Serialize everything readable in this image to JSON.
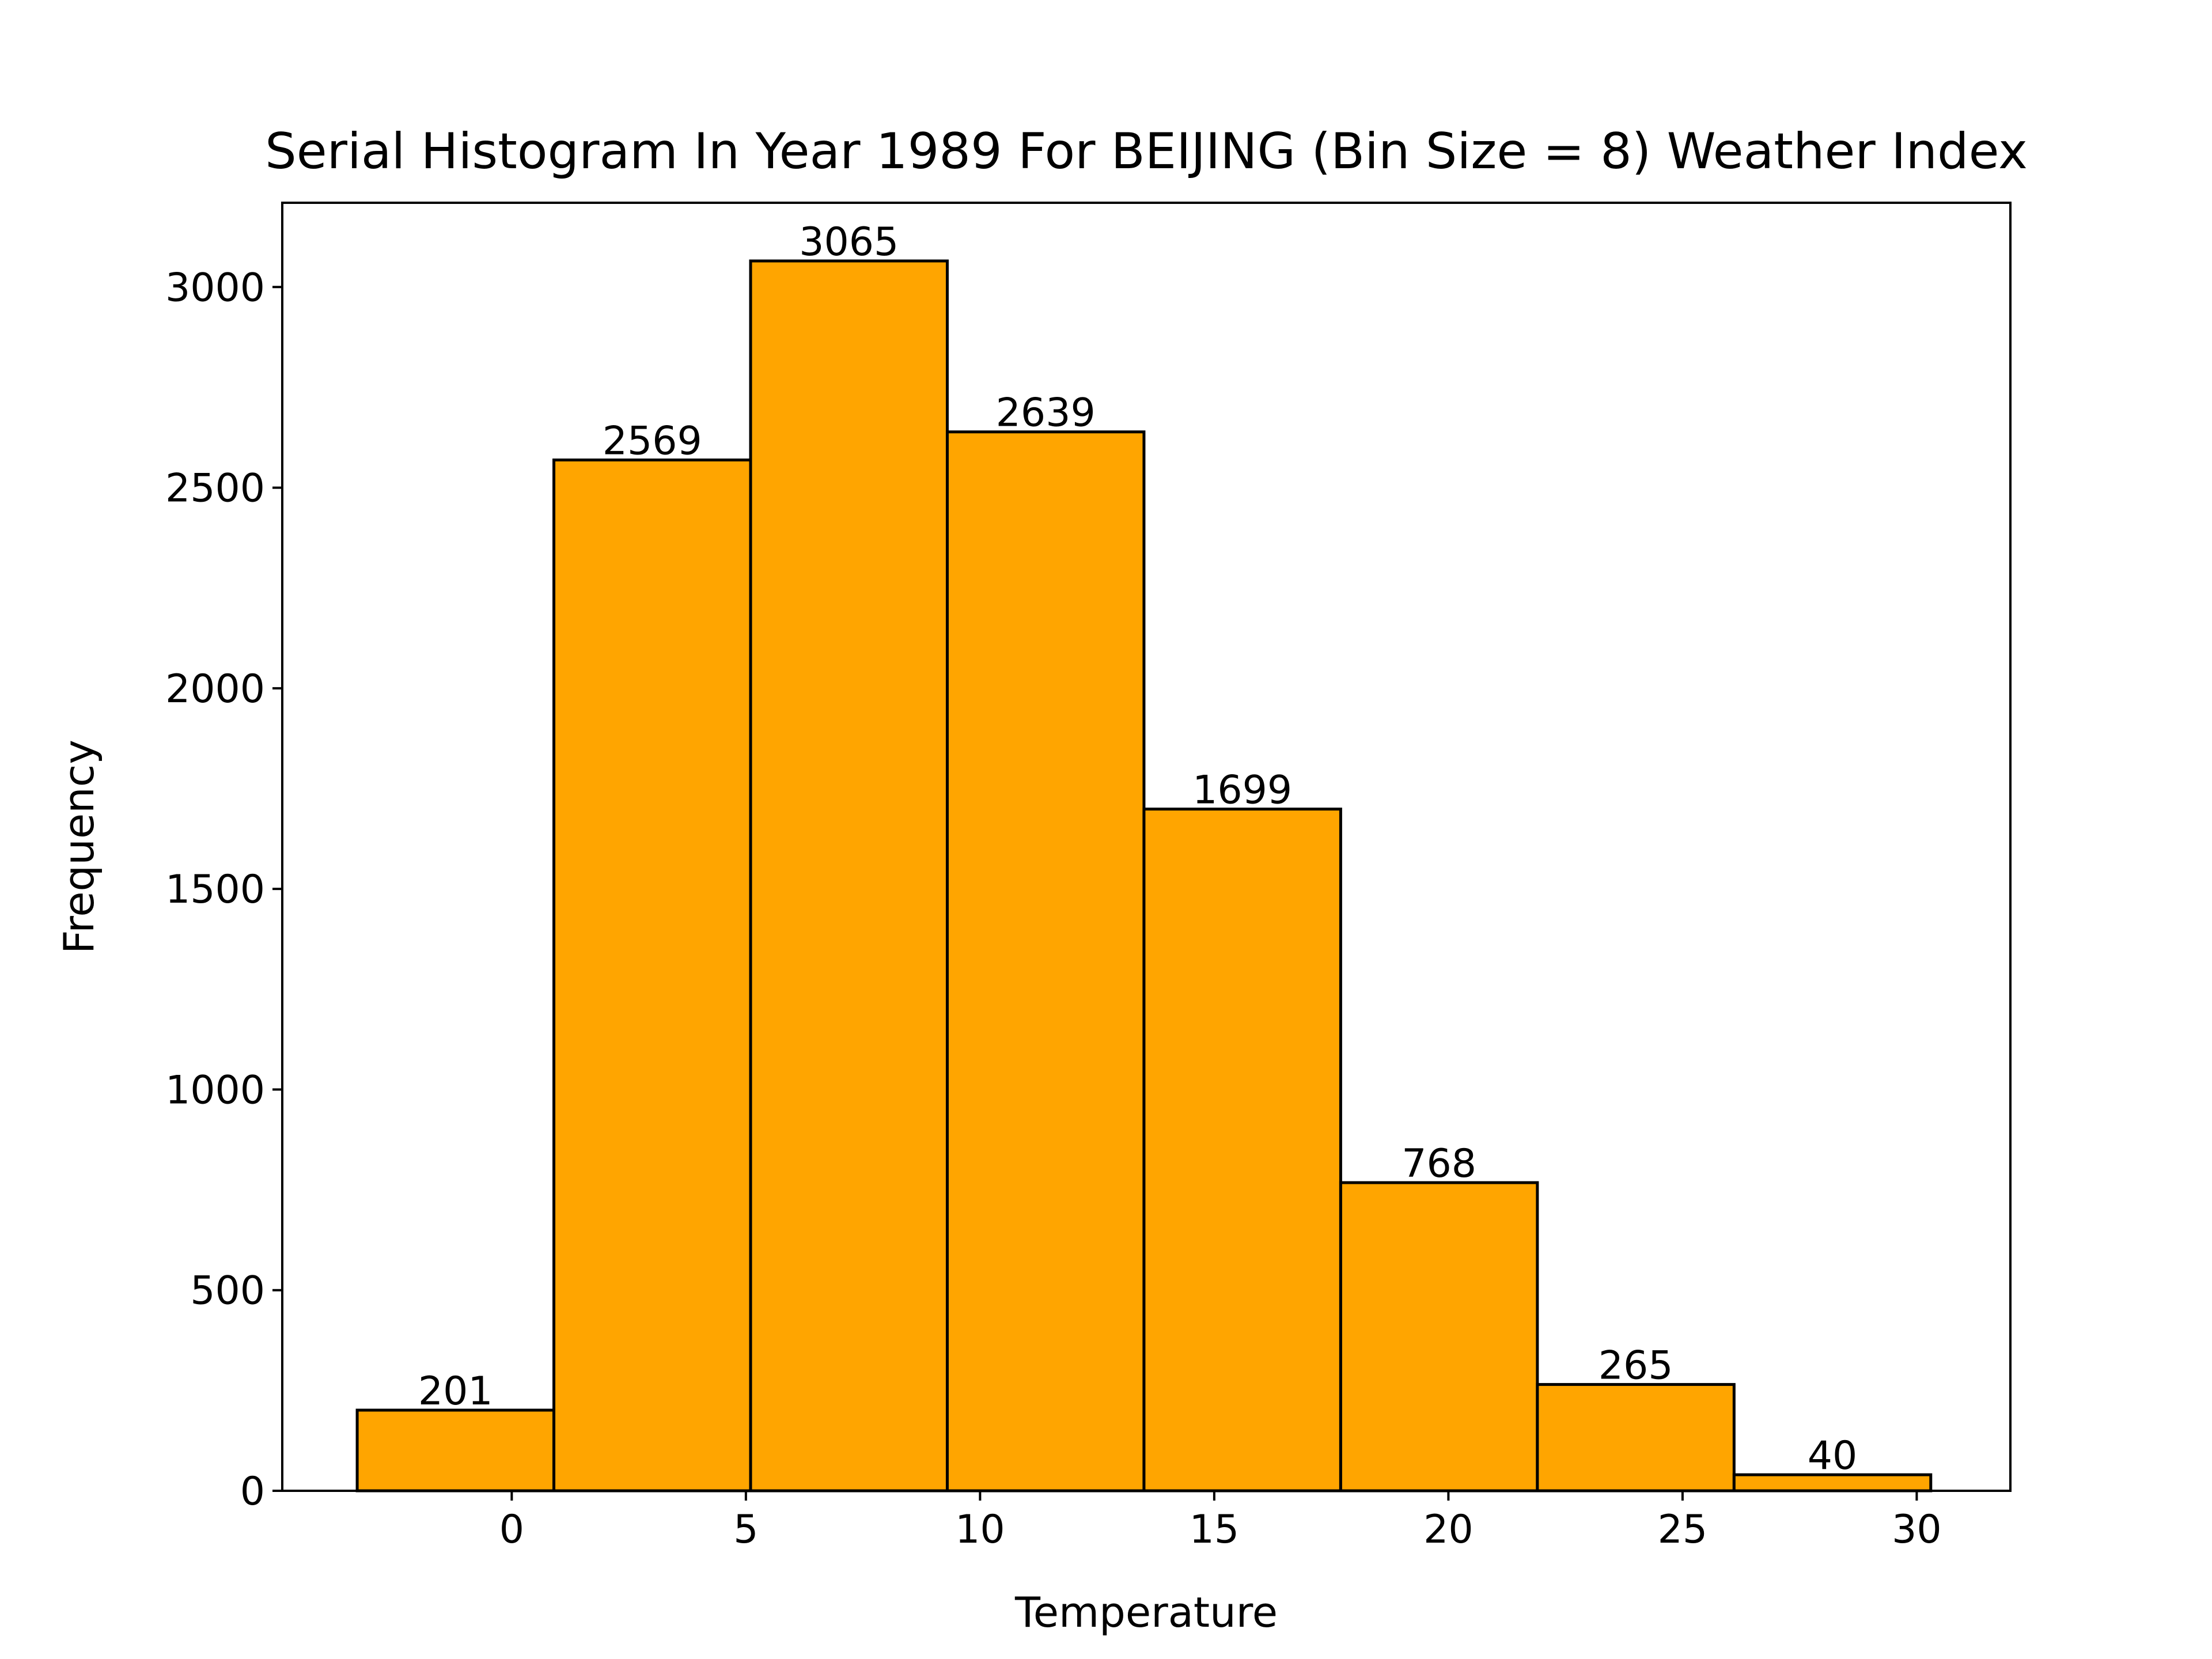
{
  "chart_data": {
    "type": "bar",
    "title": "Serial Histogram In Year 1989 For BEIJING (Bin Size = 8) Weather Index",
    "xlabel": "Temperature",
    "ylabel": "Frequency",
    "bin_edges": [
      -3.3,
      0.9,
      5.1,
      9.3,
      13.5,
      17.7,
      21.9,
      26.1,
      30.3
    ],
    "values": [
      201,
      2569,
      3065,
      2639,
      1699,
      768,
      265,
      40
    ],
    "data_labels": [
      "201",
      "2569",
      "3065",
      "2639",
      "1699",
      "768",
      "265",
      "40"
    ],
    "xlim": [
      -4.9,
      32.0
    ],
    "ylim": [
      0,
      3210
    ],
    "xticks": [
      0,
      5,
      10,
      15,
      20,
      25,
      30
    ],
    "xtick_labels": [
      "0",
      "5",
      "10",
      "15",
      "20",
      "25",
      "30"
    ],
    "yticks": [
      0,
      500,
      1000,
      1500,
      2000,
      2500,
      3000
    ],
    "ytick_labels": [
      "0",
      "500",
      "1000",
      "1500",
      "2000",
      "2500",
      "3000"
    ],
    "grid": false,
    "legend": "none",
    "bar_color": "#ffa500",
    "edge_color": "#000000"
  }
}
